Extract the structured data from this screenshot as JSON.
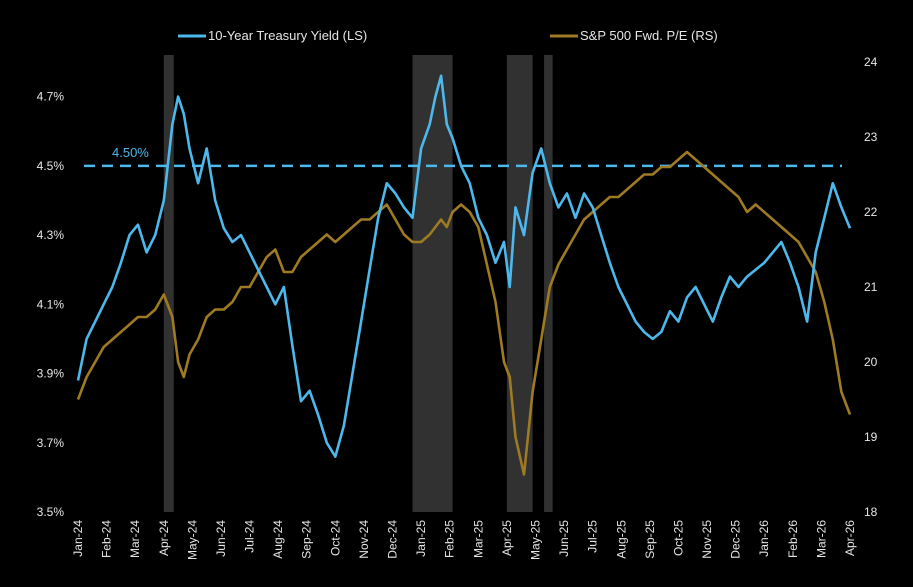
{
  "chart_data": {
    "type": "line",
    "legend_position": "top",
    "grid": false,
    "colors": {
      "background": "#000000",
      "yield": "#4db8ec",
      "pe": "#9e7a22",
      "threshold": "#4db8ec",
      "shade": "#3a3a3a"
    },
    "x_ticks": [
      "Jan-24",
      "Feb-24",
      "Mar-24",
      "Apr-24",
      "May-24",
      "Jun-24",
      "Jul-24",
      "Aug-24",
      "Sep-24",
      "Oct-24",
      "Nov-24",
      "Dec-24",
      "Jan-25",
      "Feb-25",
      "Mar-25",
      "Apr-25",
      "May-25",
      "Jun-25",
      "Jul-25",
      "Aug-25",
      "Sep-25",
      "Oct-25",
      "Nov-25",
      "Dec-25",
      "Jan-26",
      "Feb-26",
      "Mar-26",
      "Apr-26"
    ],
    "y_left": {
      "ticks": [
        "3.5%",
        "3.7%",
        "3.9%",
        "4.1%",
        "4.3%",
        "4.5%",
        "4.7%"
      ],
      "min": 3.5,
      "max": 4.8
    },
    "y_right": {
      "ticks": [
        "18",
        "19",
        "20",
        "21",
        "22",
        "23",
        "24"
      ],
      "min": 18,
      "max": 24
    },
    "threshold": {
      "value": 4.5,
      "label": "4.50%"
    },
    "shaded_periods": [
      {
        "start": 3.0,
        "end": 3.35
      },
      {
        "start": 11.7,
        "end": 13.1
      },
      {
        "start": 15.0,
        "end": 15.9
      },
      {
        "start": 16.3,
        "end": 16.6
      }
    ],
    "series": [
      {
        "name": "10-Year Treasury Yield (LS)",
        "axis": "left",
        "x": [
          0,
          0.3,
          0.6,
          0.9,
          1.2,
          1.5,
          1.8,
          2.1,
          2.4,
          2.7,
          3.0,
          3.3,
          3.5,
          3.7,
          3.9,
          4.2,
          4.5,
          4.8,
          5.1,
          5.4,
          5.7,
          6.0,
          6.3,
          6.6,
          6.9,
          7.2,
          7.5,
          7.8,
          8.1,
          8.4,
          8.7,
          9.0,
          9.3,
          9.6,
          9.9,
          10.2,
          10.5,
          10.8,
          11.1,
          11.4,
          11.7,
          12.0,
          12.3,
          12.5,
          12.7,
          12.9,
          13.1,
          13.4,
          13.7,
          14.0,
          14.3,
          14.6,
          14.9,
          15.1,
          15.3,
          15.6,
          15.9,
          16.2,
          16.5,
          16.8,
          17.1,
          17.4,
          17.7,
          18.0,
          18.3,
          18.6,
          18.9,
          19.2,
          19.5,
          19.8,
          20.1,
          20.4,
          20.7,
          21.0,
          21.3,
          21.6,
          21.9,
          22.2,
          22.5,
          22.8,
          23.1,
          23.4,
          23.7,
          24.0,
          24.3,
          24.6,
          24.9,
          25.2,
          25.5,
          25.8,
          26.1,
          26.4,
          26.7,
          27.0
        ],
        "y": [
          3.88,
          4.0,
          4.05,
          4.1,
          4.15,
          4.22,
          4.3,
          4.33,
          4.25,
          4.3,
          4.4,
          4.62,
          4.7,
          4.65,
          4.55,
          4.45,
          4.55,
          4.4,
          4.32,
          4.28,
          4.3,
          4.25,
          4.2,
          4.15,
          4.1,
          4.15,
          3.98,
          3.82,
          3.85,
          3.78,
          3.7,
          3.66,
          3.75,
          3.9,
          4.05,
          4.2,
          4.35,
          4.45,
          4.42,
          4.38,
          4.35,
          4.55,
          4.62,
          4.7,
          4.76,
          4.62,
          4.58,
          4.5,
          4.45,
          4.35,
          4.3,
          4.22,
          4.28,
          4.15,
          4.38,
          4.3,
          4.48,
          4.55,
          4.45,
          4.38,
          4.42,
          4.35,
          4.42,
          4.38,
          4.3,
          4.22,
          4.15,
          4.1,
          4.05,
          4.02,
          4.0,
          4.02,
          4.08,
          4.05,
          4.12,
          4.15,
          4.1,
          4.05,
          4.12,
          4.18,
          4.15,
          4.18,
          4.2,
          4.22,
          4.25,
          4.28,
          4.22,
          4.15,
          4.05,
          4.25,
          4.35,
          4.45,
          4.38,
          4.32
        ]
      },
      {
        "name": "S&P 500 Fwd. P/E (RS)",
        "axis": "right",
        "x": [
          0,
          0.3,
          0.6,
          0.9,
          1.2,
          1.5,
          1.8,
          2.1,
          2.4,
          2.7,
          3.0,
          3.3,
          3.5,
          3.7,
          3.9,
          4.2,
          4.5,
          4.8,
          5.1,
          5.4,
          5.7,
          6.0,
          6.3,
          6.6,
          6.9,
          7.2,
          7.5,
          7.8,
          8.1,
          8.4,
          8.7,
          9.0,
          9.3,
          9.6,
          9.9,
          10.2,
          10.5,
          10.8,
          11.1,
          11.4,
          11.7,
          12.0,
          12.3,
          12.5,
          12.7,
          12.9,
          13.1,
          13.4,
          13.7,
          14.0,
          14.3,
          14.6,
          14.9,
          15.1,
          15.3,
          15.6,
          15.9,
          16.2,
          16.5,
          16.8,
          17.1,
          17.4,
          17.7,
          18.0,
          18.3,
          18.6,
          18.9,
          19.2,
          19.5,
          19.8,
          20.1,
          20.4,
          20.7,
          21.0,
          21.3,
          21.6,
          21.9,
          22.2,
          22.5,
          22.8,
          23.1,
          23.4,
          23.7,
          24.0,
          24.3,
          24.6,
          24.9,
          25.2,
          25.5,
          25.8,
          26.1,
          26.4,
          26.7,
          27.0
        ],
        "y": [
          19.5,
          19.8,
          20.0,
          20.2,
          20.3,
          20.4,
          20.5,
          20.6,
          20.6,
          20.7,
          20.9,
          20.6,
          20.0,
          19.8,
          20.1,
          20.3,
          20.6,
          20.7,
          20.7,
          20.8,
          21.0,
          21.0,
          21.2,
          21.4,
          21.5,
          21.2,
          21.2,
          21.4,
          21.5,
          21.6,
          21.7,
          21.6,
          21.7,
          21.8,
          21.9,
          21.9,
          22.0,
          22.1,
          21.9,
          21.7,
          21.6,
          21.6,
          21.7,
          21.8,
          21.9,
          21.8,
          22.0,
          22.1,
          22.0,
          21.8,
          21.3,
          20.8,
          20.0,
          19.8,
          19.0,
          18.5,
          19.6,
          20.3,
          21.0,
          21.3,
          21.5,
          21.7,
          21.9,
          22.0,
          22.1,
          22.2,
          22.2,
          22.3,
          22.4,
          22.5,
          22.5,
          22.6,
          22.6,
          22.7,
          22.8,
          22.7,
          22.6,
          22.5,
          22.4,
          22.3,
          22.2,
          22.0,
          22.1,
          22.0,
          21.9,
          21.8,
          21.7,
          21.6,
          21.4,
          21.2,
          20.8,
          20.3,
          19.6,
          19.3
        ]
      }
    ]
  }
}
